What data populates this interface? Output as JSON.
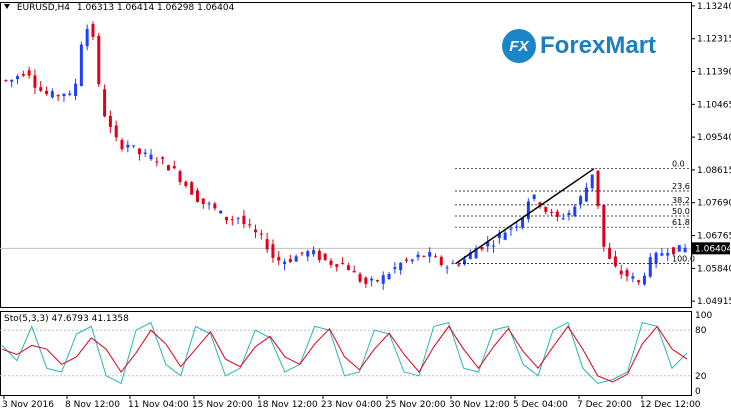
{
  "header": {
    "symbol": "EURUSD,H4",
    "ohlc": "1.06313 1.06414 1.06298 1.06404"
  },
  "logo": {
    "badge": "FX",
    "text": "ForexMart"
  },
  "price_axis": {
    "labels": [
      "1.13240",
      "1.12315",
      "1.11390",
      "1.10465",
      "1.09540",
      "1.08615",
      "1.07690",
      "1.06765",
      "1.05840",
      "1.04915"
    ],
    "current": "1.06404"
  },
  "fibonacci": {
    "levels": [
      "0.0",
      "23.6",
      "38.2",
      "50.0",
      "61.8",
      "100.0"
    ]
  },
  "stochastic": {
    "label": "Sto(5,3,3) 47.6793 41.1358",
    "axis_labels": [
      "100",
      "80",
      "20",
      "0"
    ]
  },
  "time_axis": {
    "labels": [
      "3 Nov 2016",
      "8 Nov 12:00",
      "11 Nov 04:00",
      "15 Nov 20:00",
      "18 Nov 12:00",
      "23 Nov 04:00",
      "25 Nov 20:00",
      "30 Nov 12:00",
      "5 Dec 04:00",
      "7 Dec 20:00",
      "12 Dec 12:00"
    ]
  },
  "colors": {
    "bull": "#1f3fff",
    "bear": "#e0001b",
    "main_line": "#2bb5b8",
    "signal_line": "#e0001b",
    "logo": "#1a86c8"
  },
  "chart_data": {
    "type": "candlestick",
    "ylim": [
      1.0475,
      1.1335
    ],
    "price_path": [
      1.1115,
      1.111,
      1.113,
      1.1145,
      1.1095,
      1.1075,
      1.107,
      1.108,
      1.106,
      1.124,
      1.128,
      1.105,
      1.098,
      1.093,
      1.0935,
      1.091,
      1.09,
      1.0895,
      1.088,
      1.086,
      1.083,
      1.08,
      1.077,
      1.076,
      1.074,
      1.072,
      1.073,
      1.07,
      1.068,
      1.066,
      1.061,
      1.0605,
      1.0612,
      1.0625,
      1.063,
      1.0615,
      1.06,
      1.06,
      1.059,
      1.056,
      1.054,
      1.0545,
      1.056,
      1.058,
      1.06,
      1.0605,
      1.062,
      1.062,
      1.06,
      1.059,
      1.06,
      1.061,
      1.064,
      1.065,
      1.066,
      1.0685,
      1.07,
      1.072,
      1.079,
      1.077,
      1.074,
      1.0725,
      1.0735,
      1.076,
      1.08,
      1.0865,
      1.065,
      1.059,
      1.057,
      1.056,
      1.054,
      1.06,
      1.062,
      1.064,
      1.0635,
      1.064
    ],
    "sto_main": [
      60,
      40,
      85,
      30,
      25,
      75,
      85,
      20,
      10,
      80,
      90,
      35,
      20,
      85,
      75,
      20,
      30,
      80,
      70,
      25,
      35,
      85,
      80,
      20,
      25,
      80,
      75,
      25,
      20,
      85,
      90,
      30,
      25,
      80,
      85,
      35,
      20,
      80,
      90,
      30,
      10,
      15,
      25,
      90,
      85,
      30,
      50
    ],
    "sto_signal": [
      55,
      48,
      60,
      55,
      35,
      45,
      70,
      55,
      25,
      50,
      80,
      62,
      32,
      55,
      78,
      42,
      32,
      58,
      72,
      45,
      35,
      62,
      82,
      45,
      28,
      55,
      76,
      48,
      25,
      58,
      85,
      55,
      30,
      58,
      82,
      52,
      30,
      58,
      85,
      55,
      20,
      12,
      22,
      62,
      85,
      55,
      42
    ]
  }
}
